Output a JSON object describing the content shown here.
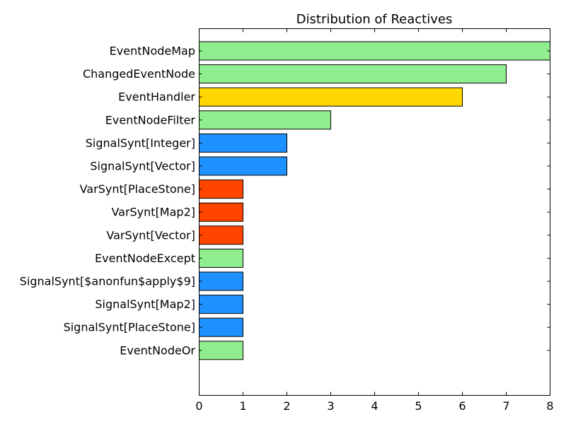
{
  "chart_data": {
    "type": "bar",
    "orientation": "horizontal",
    "title": "Distribution of Reactives",
    "xlabel": "",
    "ylabel": "",
    "xlim": [
      0,
      8
    ],
    "x_ticks": [
      "0",
      "1",
      "2",
      "3",
      "4",
      "5",
      "6",
      "7",
      "8"
    ],
    "grid": false,
    "legend": "none",
    "categories": [
      "EventNodeMap",
      "ChangedEventNode",
      "EventHandler",
      "EventNodeFilter",
      "SignalSynt[Integer]",
      "SignalSynt[Vector]",
      "VarSynt[PlaceStone]",
      "VarSynt[Map2]",
      "VarSynt[Vector]",
      "EventNodeExcept",
      "SignalSynt[$anonfun$apply$9]",
      "SignalSynt[Map2]",
      "SignalSynt[PlaceStone]",
      "EventNodeOr"
    ],
    "values": [
      8,
      7,
      6,
      3,
      2,
      2,
      1,
      1,
      1,
      1,
      1,
      1,
      1,
      1
    ],
    "colors": [
      "#90ee90",
      "#90ee90",
      "#ffd700",
      "#90ee90",
      "#1e90ff",
      "#1e90ff",
      "#ff4500",
      "#ff4500",
      "#ff4500",
      "#90ee90",
      "#1e90ff",
      "#1e90ff",
      "#1e90ff",
      "#90ee90"
    ]
  }
}
